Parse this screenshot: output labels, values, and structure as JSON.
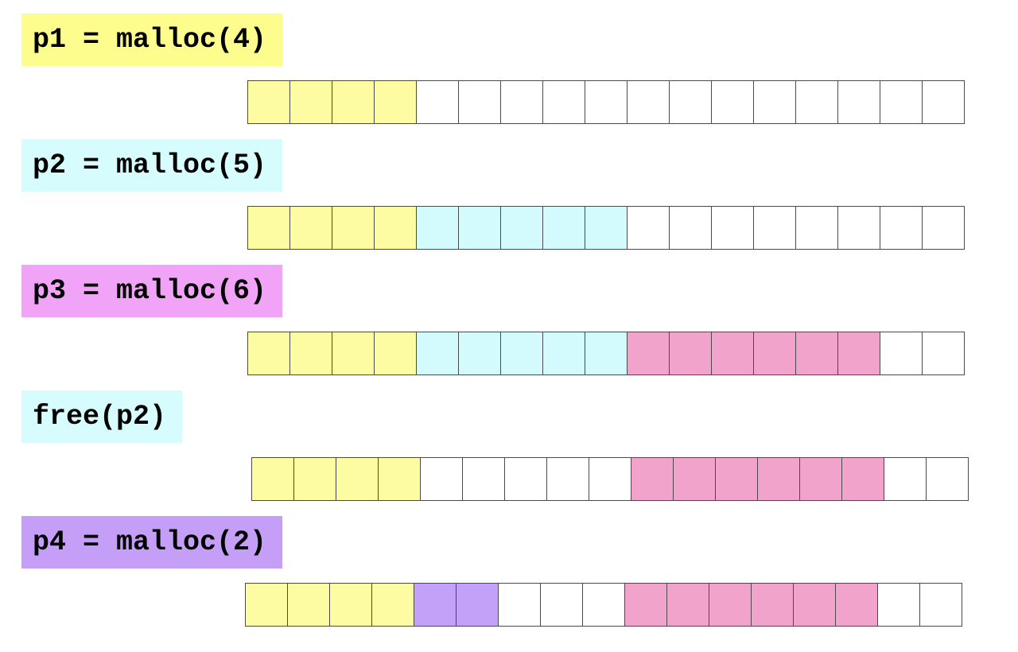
{
  "colors": {
    "free": "#ffffff",
    "p1": "#fdfca2",
    "p2": "#d3fbfd",
    "p3": "#f2a3cc",
    "p4": "#c4a1f8",
    "label_p1": "#fcfd8c",
    "label_p2": "#d6fcfd",
    "label_p3": "#f1a3f7",
    "label_p4": "#c59ff7"
  },
  "steps": [
    {
      "label": "p1 = malloc(4)",
      "label_color_key": "label_p1",
      "heap": [
        "p1",
        "p1",
        "p1",
        "p1",
        "free",
        "free",
        "free",
        "free",
        "free",
        "free",
        "free",
        "free",
        "free",
        "free",
        "free",
        "free",
        "free"
      ]
    },
    {
      "label": "p2 = malloc(5)",
      "label_color_key": "label_p2",
      "heap": [
        "p1",
        "p1",
        "p1",
        "p1",
        "p2",
        "p2",
        "p2",
        "p2",
        "p2",
        "free",
        "free",
        "free",
        "free",
        "free",
        "free",
        "free",
        "free"
      ]
    },
    {
      "label": "p3 = malloc(6)",
      "label_color_key": "label_p3",
      "heap": [
        "p1",
        "p1",
        "p1",
        "p1",
        "p2",
        "p2",
        "p2",
        "p2",
        "p2",
        "p3",
        "p3",
        "p3",
        "p3",
        "p3",
        "p3",
        "free",
        "free"
      ]
    },
    {
      "label": "free(p2)",
      "label_color_key": "label_p2",
      "heap": [
        "p1",
        "p1",
        "p1",
        "p1",
        "free",
        "free",
        "free",
        "free",
        "free",
        "p3",
        "p3",
        "p3",
        "p3",
        "p3",
        "p3",
        "free",
        "free"
      ]
    },
    {
      "label": "p4 = malloc(2)",
      "label_color_key": "label_p4",
      "heap": [
        "p1",
        "p1",
        "p1",
        "p1",
        "p4",
        "p4",
        "free",
        "free",
        "free",
        "p3",
        "p3",
        "p3",
        "p3",
        "p3",
        "p3",
        "free",
        "free"
      ]
    }
  ]
}
